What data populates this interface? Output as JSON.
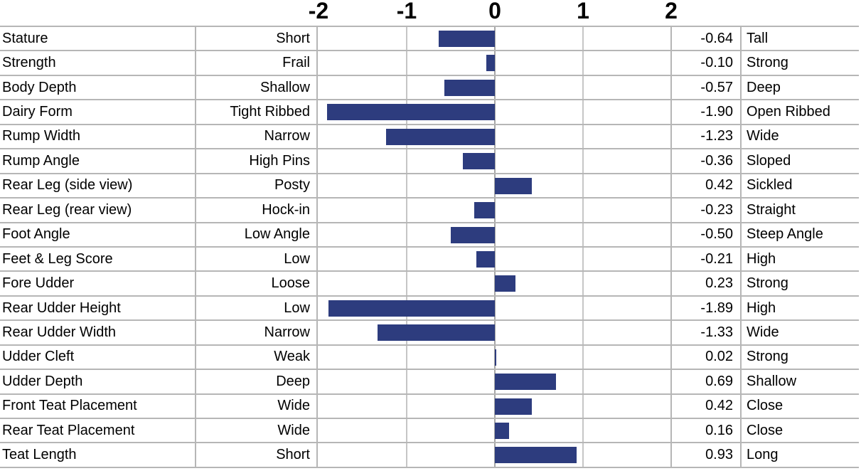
{
  "chart_data": {
    "type": "bar",
    "orientation": "horizontal",
    "description": "Linear type trait standardized transmitting ability chart with horizontal bars from a zero axis",
    "legend": "none",
    "axis": {
      "position": "top",
      "min": -2,
      "max": 2,
      "ticks": [
        -2,
        -1,
        0,
        1,
        2
      ],
      "tick_labels": [
        "-2",
        "-1",
        "0",
        "1",
        "2"
      ]
    },
    "colors": {
      "bar": "#2d3c7e",
      "border": "#b6b6b6",
      "gridline": "#c6c6c6",
      "zero_line": "#a6a6a6",
      "text": "#000000",
      "background": "#ffffff"
    },
    "rows": [
      {
        "trait": "Stature",
        "low": "Short",
        "value": -0.64,
        "value_label": "-0.64",
        "high": "Tall"
      },
      {
        "trait": "Strength",
        "low": "Frail",
        "value": -0.1,
        "value_label": "-0.10",
        "high": "Strong"
      },
      {
        "trait": "Body Depth",
        "low": "Shallow",
        "value": -0.57,
        "value_label": "-0.57",
        "high": "Deep"
      },
      {
        "trait": "Dairy Form",
        "low": "Tight Ribbed",
        "value": -1.9,
        "value_label": "-1.90",
        "high": "Open Ribbed"
      },
      {
        "trait": "Rump Width",
        "low": "Narrow",
        "value": -1.23,
        "value_label": "-1.23",
        "high": "Wide"
      },
      {
        "trait": "Rump Angle",
        "low": "High Pins",
        "value": -0.36,
        "value_label": "-0.36",
        "high": "Sloped"
      },
      {
        "trait": "Rear Leg (side view)",
        "low": "Posty",
        "value": 0.42,
        "value_label": "0.42",
        "high": "Sickled"
      },
      {
        "trait": "Rear Leg (rear view)",
        "low": "Hock-in",
        "value": -0.23,
        "value_label": "-0.23",
        "high": "Straight"
      },
      {
        "trait": "Foot Angle",
        "low": "Low Angle",
        "value": -0.5,
        "value_label": "-0.50",
        "high": "Steep Angle"
      },
      {
        "trait": "Feet & Leg Score",
        "low": "Low",
        "value": -0.21,
        "value_label": "-0.21",
        "high": "High"
      },
      {
        "trait": "Fore Udder",
        "low": "Loose",
        "value": 0.23,
        "value_label": "0.23",
        "high": "Strong"
      },
      {
        "trait": "Rear Udder Height",
        "low": "Low",
        "value": -1.89,
        "value_label": "-1.89",
        "high": "High"
      },
      {
        "trait": "Rear Udder Width",
        "low": "Narrow",
        "value": -1.33,
        "value_label": "-1.33",
        "high": "Wide"
      },
      {
        "trait": "Udder Cleft",
        "low": "Weak",
        "value": 0.02,
        "value_label": "0.02",
        "high": "Strong"
      },
      {
        "trait": "Udder Depth",
        "low": "Deep",
        "value": 0.69,
        "value_label": "0.69",
        "high": "Shallow"
      },
      {
        "trait": "Front Teat Placement",
        "low": "Wide",
        "value": 0.42,
        "value_label": "0.42",
        "high": "Close"
      },
      {
        "trait": "Rear Teat Placement",
        "low": "Wide",
        "value": 0.16,
        "value_label": "0.16",
        "high": "Close"
      },
      {
        "trait": "Teat Length",
        "low": "Short",
        "value": 0.93,
        "value_label": "0.93",
        "high": "Long"
      }
    ]
  }
}
